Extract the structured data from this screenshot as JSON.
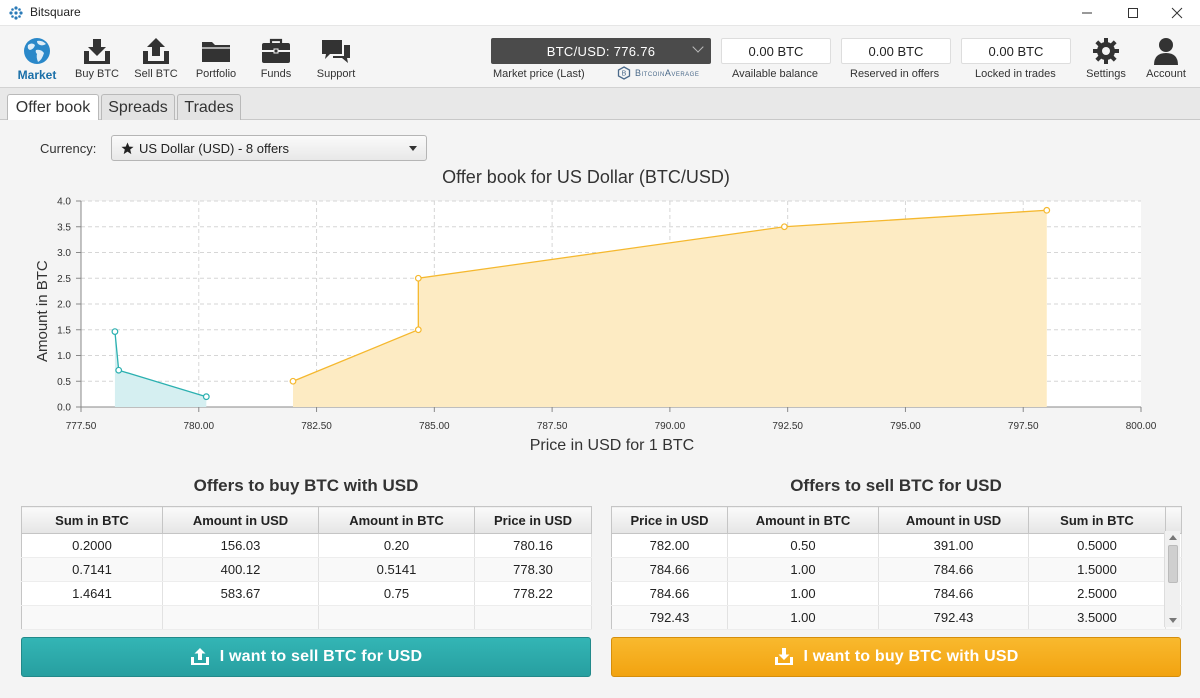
{
  "window": {
    "title": "Bitsquare"
  },
  "nav": {
    "items": [
      {
        "label": "Market",
        "icon": "globe-icon",
        "active": true
      },
      {
        "label": "Buy BTC",
        "icon": "buy-download-icon"
      },
      {
        "label": "Sell BTC",
        "icon": "sell-upload-icon"
      },
      {
        "label": "Portfolio",
        "icon": "folder-icon"
      },
      {
        "label": "Funds",
        "icon": "briefcase-icon"
      },
      {
        "label": "Support",
        "icon": "chat-bubbles-icon"
      }
    ],
    "settings_label": "Settings",
    "account_label": "Account"
  },
  "market_price": {
    "value": "BTC/USD: 776.76",
    "label": "Market price (Last)",
    "provider": "BitcoinAverage"
  },
  "balances": [
    {
      "value": "0.00 BTC",
      "label": "Available balance"
    },
    {
      "value": "0.00 BTC",
      "label": "Reserved in offers"
    },
    {
      "value": "0.00 BTC",
      "label": "Locked in trades"
    }
  ],
  "tabs": [
    "Offer book",
    "Spreads",
    "Trades"
  ],
  "currency": {
    "label": "Currency:",
    "selected": "US Dollar (USD) - 8 offers"
  },
  "chart_data": {
    "type": "area",
    "title": "Offer book for US Dollar (BTC/USD)",
    "xlabel": "Price in USD for 1 BTC",
    "ylabel": "Amount in BTC",
    "xlim": [
      777.5,
      800.0
    ],
    "ylim": [
      0.0,
      4.0
    ],
    "x_ticks": [
      "777.50",
      "780.00",
      "782.50",
      "785.00",
      "787.50",
      "790.00",
      "792.50",
      "795.00",
      "797.50",
      "800.00"
    ],
    "y_ticks": [
      "0.0",
      "0.5",
      "1.0",
      "1.5",
      "2.0",
      "2.5",
      "3.0",
      "3.5",
      "4.0"
    ],
    "grid": true,
    "series": [
      {
        "color": "#2bb0b0",
        "fill": "#d5eff1",
        "points": [
          [
            778.22,
            1.4641
          ],
          [
            778.3,
            0.7141
          ],
          [
            780.16,
            0.2
          ]
        ]
      },
      {
        "color": "#f5b82e",
        "fill": "#fdebc3",
        "points": [
          [
            782.0,
            0.5
          ],
          [
            784.66,
            1.5
          ],
          [
            784.66,
            2.5
          ],
          [
            792.43,
            3.5
          ],
          [
            798.0,
            3.82
          ]
        ]
      }
    ]
  },
  "buy_table": {
    "title": "Offers to buy BTC with USD",
    "columns": [
      "Sum in BTC",
      "Amount in USD",
      "Amount in BTC",
      "Price in USD"
    ],
    "rows": [
      [
        "0.2000",
        "156.03",
        "0.20",
        "780.16"
      ],
      [
        "0.7141",
        "400.12",
        "0.5141",
        "778.30"
      ],
      [
        "1.4641",
        "583.67",
        "0.75",
        "778.22"
      ]
    ]
  },
  "sell_table": {
    "title": "Offers to sell BTC for USD",
    "columns": [
      "Price in USD",
      "Amount in BTC",
      "Amount in USD",
      "Sum in BTC"
    ],
    "rows": [
      [
        "782.00",
        "0.50",
        "391.00",
        "0.5000"
      ],
      [
        "784.66",
        "1.00",
        "784.66",
        "1.5000"
      ],
      [
        "784.66",
        "1.00",
        "784.66",
        "2.5000"
      ],
      [
        "792.43",
        "1.00",
        "792.43",
        "3.5000"
      ]
    ]
  },
  "actions": {
    "sell_label": "I want to sell BTC for USD",
    "buy_label": "I want to buy BTC with USD",
    "sell_color": "#2aa8a9",
    "buy_color": "#f5ad1c"
  }
}
